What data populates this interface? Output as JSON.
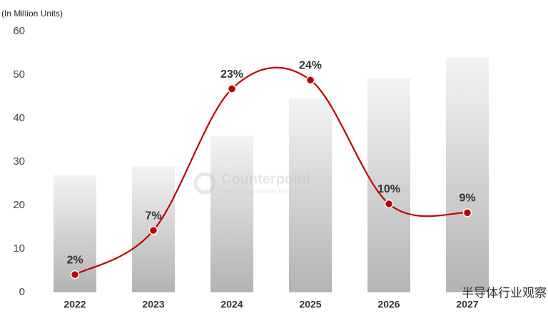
{
  "chart_data": {
    "type": "bar",
    "ylabel": "(In Million Units)",
    "categories": [
      "2022",
      "2023",
      "2024",
      "2025",
      "2026",
      "2027"
    ],
    "series": [
      {
        "type": "bar",
        "color": "#bdbdbd",
        "values": [
          27,
          29,
          36,
          44.5,
          49.3,
          54
        ]
      },
      {
        "type": "line",
        "axis": "y2",
        "color": "#c00000",
        "values": [
          2,
          7,
          23,
          24,
          10,
          9
        ],
        "value_labels": [
          "2%",
          "7%",
          "23%",
          "24%",
          "10%",
          "9%"
        ]
      }
    ],
    "ylim": [
      0,
      60
    ],
    "yticks": [
      0,
      10,
      20,
      30,
      40,
      50,
      60
    ],
    "y2lim": [
      0,
      29.5
    ],
    "watermark": {
      "title": "Counterpoint",
      "subtitle": "Technology Market Research"
    },
    "source_tag": "半导体行业观察"
  }
}
